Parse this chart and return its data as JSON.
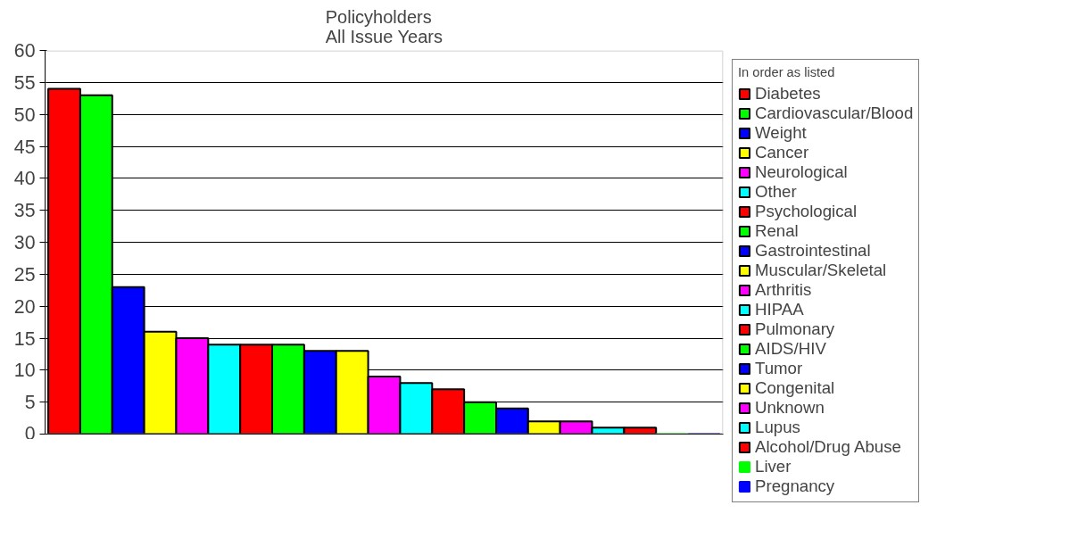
{
  "chart_data": {
    "type": "bar",
    "title": "Policyholders\nAll Issue Years",
    "legend_title": "In order as listed",
    "categories": [
      null,
      null,
      null,
      null,
      null,
      null,
      null,
      null,
      null,
      null,
      null,
      null,
      null,
      null,
      null,
      null,
      null,
      null,
      null,
      null,
      null
    ],
    "series": [
      {
        "name": "Diabetes",
        "color": "#ff0000",
        "values": [
          54,
          null,
          null,
          null,
          null,
          null,
          null,
          null,
          null,
          null,
          null,
          null,
          null,
          null,
          null,
          null,
          null,
          null,
          null,
          null,
          null
        ]
      },
      {
        "name": "Cardiovascular/Blood",
        "color": "#00ff00",
        "values": [
          null,
          53,
          null,
          null,
          null,
          null,
          null,
          null,
          null,
          null,
          null,
          null,
          null,
          null,
          null,
          null,
          null,
          null,
          null,
          null,
          null
        ]
      },
      {
        "name": "Weight",
        "color": "#0000ff",
        "values": [
          null,
          null,
          23,
          null,
          null,
          null,
          null,
          null,
          null,
          null,
          null,
          null,
          null,
          null,
          null,
          null,
          null,
          null,
          null,
          null,
          null
        ]
      },
      {
        "name": "Cancer",
        "color": "#ffff00",
        "values": [
          null,
          null,
          null,
          16,
          null,
          null,
          null,
          null,
          null,
          null,
          null,
          null,
          null,
          null,
          null,
          null,
          null,
          null,
          null,
          null,
          null
        ]
      },
      {
        "name": "Neurological",
        "color": "#ff00ff",
        "values": [
          null,
          null,
          null,
          null,
          15,
          null,
          null,
          null,
          null,
          null,
          null,
          null,
          null,
          null,
          null,
          null,
          null,
          null,
          null,
          null,
          null
        ]
      },
      {
        "name": "Other",
        "color": "#00ffff",
        "values": [
          null,
          null,
          null,
          null,
          null,
          14,
          null,
          null,
          null,
          null,
          null,
          null,
          null,
          null,
          null,
          null,
          null,
          null,
          null,
          null,
          null
        ]
      },
      {
        "name": "Psychological",
        "color": "#ff0000",
        "values": [
          null,
          null,
          null,
          null,
          null,
          null,
          14,
          null,
          null,
          null,
          null,
          null,
          null,
          null,
          null,
          null,
          null,
          null,
          null,
          null,
          null
        ]
      },
      {
        "name": "Renal",
        "color": "#00ff00",
        "values": [
          null,
          null,
          null,
          null,
          null,
          null,
          null,
          14,
          null,
          null,
          null,
          null,
          null,
          null,
          null,
          null,
          null,
          null,
          null,
          null,
          null
        ]
      },
      {
        "name": "Gastrointestinal",
        "color": "#0000ff",
        "values": [
          null,
          null,
          null,
          null,
          null,
          null,
          null,
          null,
          13,
          null,
          null,
          null,
          null,
          null,
          null,
          null,
          null,
          null,
          null,
          null,
          null
        ]
      },
      {
        "name": "Muscular/Skeletal",
        "color": "#ffff00",
        "values": [
          null,
          null,
          null,
          null,
          null,
          null,
          null,
          null,
          null,
          13,
          null,
          null,
          null,
          null,
          null,
          null,
          null,
          null,
          null,
          null,
          null
        ]
      },
      {
        "name": "Arthritis",
        "color": "#ff00ff",
        "values": [
          null,
          null,
          null,
          null,
          null,
          null,
          null,
          null,
          null,
          null,
          9,
          null,
          null,
          null,
          null,
          null,
          null,
          null,
          null,
          null,
          null
        ]
      },
      {
        "name": "HIPAA",
        "color": "#00ffff",
        "values": [
          null,
          null,
          null,
          null,
          null,
          null,
          null,
          null,
          null,
          null,
          null,
          8,
          null,
          null,
          null,
          null,
          null,
          null,
          null,
          null,
          null
        ]
      },
      {
        "name": "Pulmonary",
        "color": "#ff0000",
        "values": [
          null,
          null,
          null,
          null,
          null,
          null,
          null,
          null,
          null,
          null,
          null,
          null,
          7,
          null,
          null,
          null,
          null,
          null,
          null,
          null,
          null
        ]
      },
      {
        "name": "AIDS/HIV",
        "color": "#00ff00",
        "values": [
          null,
          null,
          null,
          null,
          null,
          null,
          null,
          null,
          null,
          null,
          null,
          null,
          null,
          5,
          null,
          null,
          null,
          null,
          null,
          null,
          null
        ]
      },
      {
        "name": "Tumor",
        "color": "#0000ff",
        "values": [
          null,
          null,
          null,
          null,
          null,
          null,
          null,
          null,
          null,
          null,
          null,
          null,
          null,
          null,
          4,
          null,
          null,
          null,
          null,
          null,
          null
        ]
      },
      {
        "name": "Congenital",
        "color": "#ffff00",
        "values": [
          null,
          null,
          null,
          null,
          null,
          null,
          null,
          null,
          null,
          null,
          null,
          null,
          null,
          null,
          null,
          2,
          null,
          null,
          null,
          null,
          null
        ]
      },
      {
        "name": "Unknown",
        "color": "#ff00ff",
        "values": [
          null,
          null,
          null,
          null,
          null,
          null,
          null,
          null,
          null,
          null,
          null,
          null,
          null,
          null,
          null,
          null,
          2,
          null,
          null,
          null,
          null
        ]
      },
      {
        "name": "Lupus",
        "color": "#00ffff",
        "values": [
          null,
          null,
          null,
          null,
          null,
          null,
          null,
          null,
          null,
          null,
          null,
          null,
          null,
          null,
          null,
          null,
          null,
          1,
          null,
          null,
          null
        ]
      },
      {
        "name": "Alcohol/Drug Abuse",
        "color": "#ff0000",
        "values": [
          null,
          null,
          null,
          null,
          null,
          null,
          null,
          null,
          null,
          null,
          null,
          null,
          null,
          null,
          null,
          null,
          null,
          null,
          1,
          null,
          null
        ]
      },
      {
        "name": "Liver",
        "color": "#00ff00",
        "values": [
          null,
          null,
          null,
          null,
          null,
          null,
          null,
          null,
          null,
          null,
          null,
          null,
          null,
          null,
          null,
          null,
          null,
          null,
          null,
          0,
          null
        ]
      },
      {
        "name": "Pregnancy",
        "color": "#0000ff",
        "values": [
          null,
          null,
          null,
          null,
          null,
          null,
          null,
          null,
          null,
          null,
          null,
          null,
          null,
          null,
          null,
          null,
          null,
          null,
          null,
          null,
          0
        ]
      }
    ],
    "ylim": [
      0,
      60
    ],
    "yticks": [
      0,
      5,
      10,
      15,
      20,
      25,
      30,
      35,
      40,
      45,
      50,
      55,
      60
    ],
    "grid": "y",
    "legend": "right",
    "tick_labels": "y"
  }
}
